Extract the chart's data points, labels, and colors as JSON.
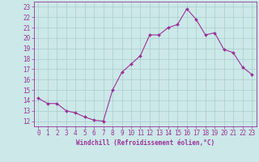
{
  "x": [
    0,
    1,
    2,
    3,
    4,
    5,
    6,
    7,
    8,
    9,
    10,
    11,
    12,
    13,
    14,
    15,
    16,
    17,
    18,
    19,
    20,
    21,
    22,
    23
  ],
  "y": [
    14.2,
    13.7,
    13.7,
    13.0,
    12.8,
    12.4,
    12.1,
    12.0,
    15.0,
    16.7,
    17.5,
    18.3,
    20.3,
    20.3,
    21.0,
    21.3,
    22.8,
    21.8,
    20.3,
    20.5,
    18.9,
    18.6,
    17.2,
    16.5
  ],
  "line_color": "#993399",
  "marker": "D",
  "marker_size": 2.0,
  "bg_color": "#cce8e8",
  "grid_color": "#aacccc",
  "tick_color": "#993399",
  "xlabel": "Windchill (Refroidissement éolien,°C)",
  "xlim": [
    -0.5,
    23.5
  ],
  "ylim": [
    11.5,
    23.5
  ],
  "yticks": [
    12,
    13,
    14,
    15,
    16,
    17,
    18,
    19,
    20,
    21,
    22,
    23
  ],
  "xticks": [
    0,
    1,
    2,
    3,
    4,
    5,
    6,
    7,
    8,
    9,
    10,
    11,
    12,
    13,
    14,
    15,
    16,
    17,
    18,
    19,
    20,
    21,
    22,
    23
  ],
  "label_fontsize": 5.5,
  "tick_fontsize": 5.5
}
